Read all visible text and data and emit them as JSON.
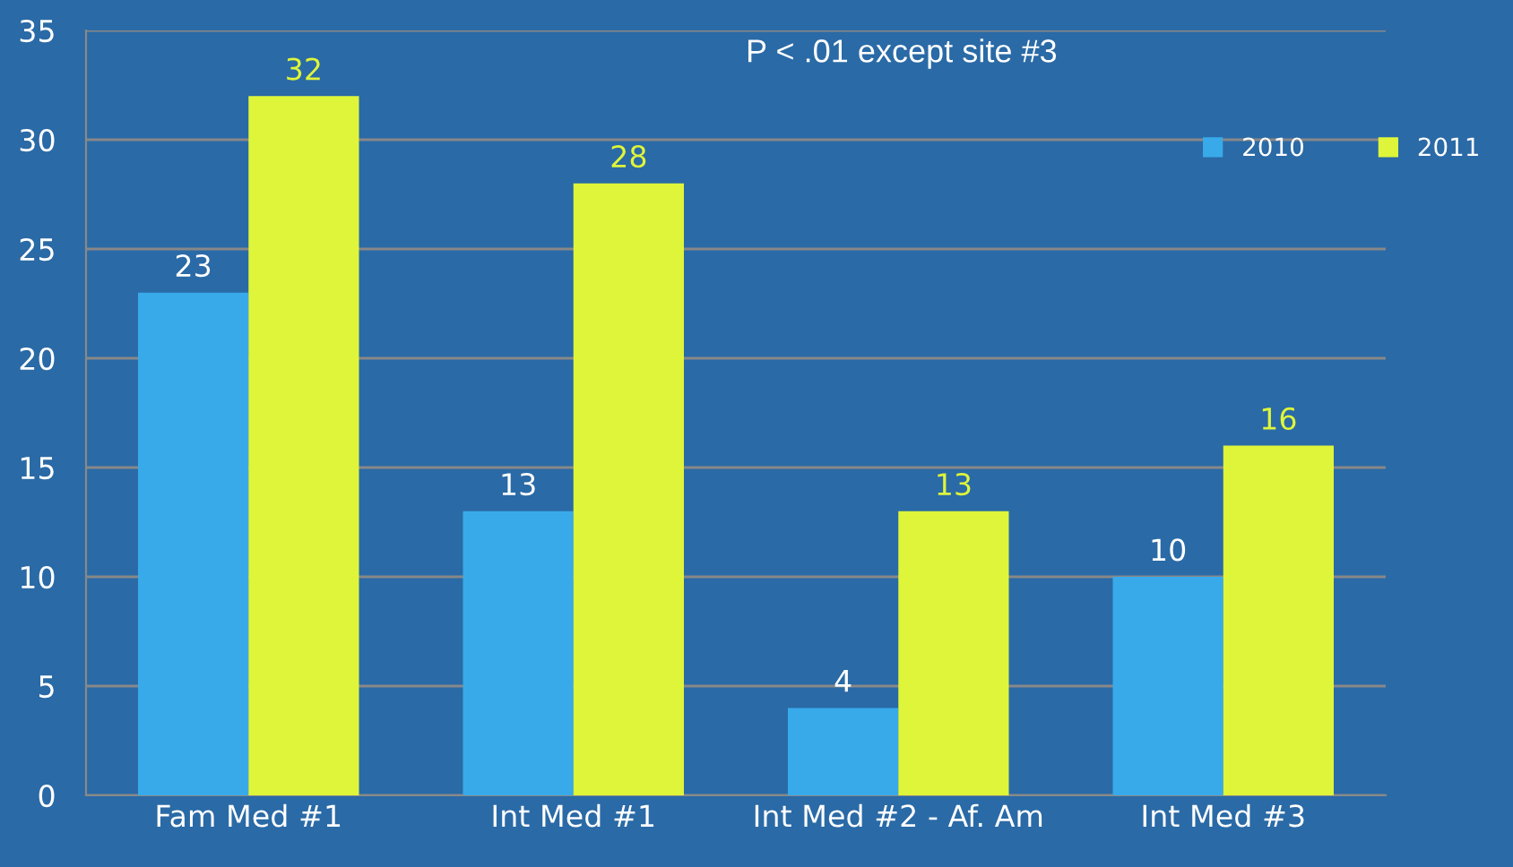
{
  "chart_data": {
    "type": "bar",
    "subtitle": "P < .01 except site #3",
    "categories": [
      "Fam Med #1",
      "Int Med #1",
      "Int Med #2 - Af. Am",
      "Int Med #3"
    ],
    "series": [
      {
        "name": "2010",
        "color": "#38aaea",
        "values": [
          23,
          13,
          4,
          10
        ]
      },
      {
        "name": "2011",
        "color": "#dff53a",
        "values": [
          32,
          28,
          13,
          16
        ]
      }
    ],
    "ylim": [
      0,
      35
    ],
    "yticks": [
      0,
      5,
      10,
      15,
      20,
      25,
      30,
      35
    ],
    "grid": "y",
    "legend": "right",
    "data_labels": true
  }
}
